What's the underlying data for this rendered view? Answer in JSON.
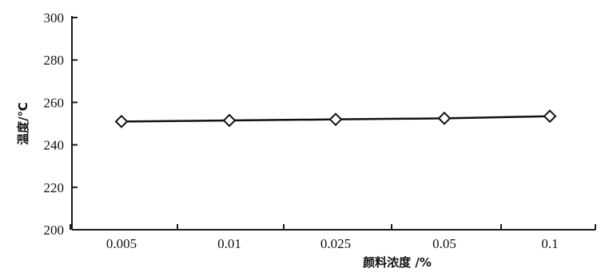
{
  "chart_data": {
    "type": "line",
    "title": "",
    "xlabel": "颜料浓度 /%",
    "ylabel": "温度/℃",
    "categories": [
      "0.005",
      "0.01",
      "0.025",
      "0.05",
      "0.1"
    ],
    "series": [
      {
        "values": [
          251,
          251.5,
          252,
          252.5,
          253.5
        ]
      }
    ],
    "ylim": [
      200,
      300
    ],
    "yticks": [
      "200",
      "220",
      "240",
      "260",
      "280",
      "300"
    ],
    "grid": false,
    "marker": "diamond-open"
  }
}
